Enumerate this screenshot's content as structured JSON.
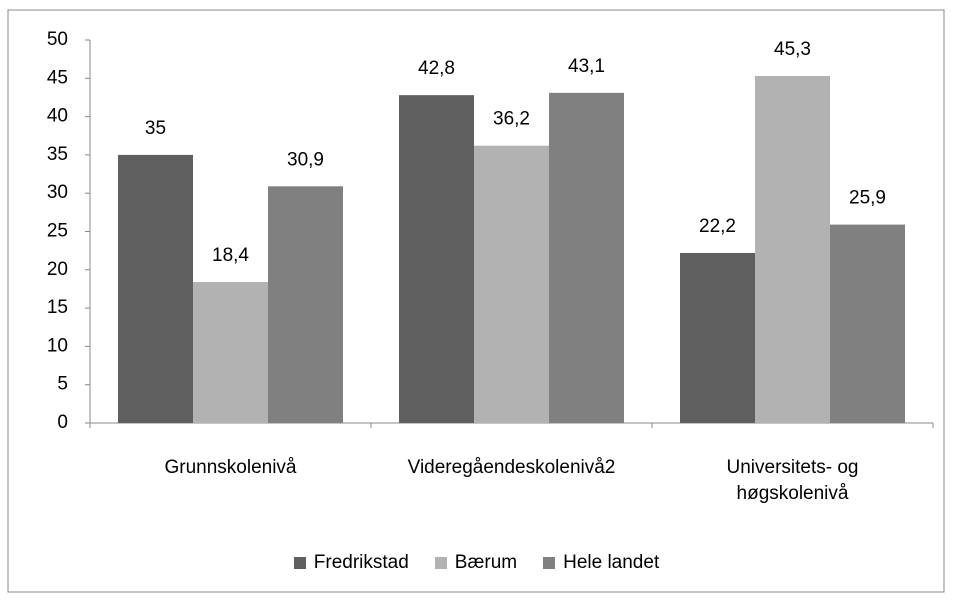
{
  "chart_data": {
    "type": "bar",
    "categories": [
      "Grunnskolenivå",
      "Videregåendeskolenivå2",
      "Universitets- og høgskolenivå"
    ],
    "series": [
      {
        "name": "Fredrikstad",
        "color": "#5f5f5f",
        "values": [
          35,
          42.8,
          22.2
        ],
        "value_labels": [
          "35",
          "42,8",
          "22,2"
        ]
      },
      {
        "name": "Bærum",
        "color": "#b2b2b2",
        "values": [
          18.4,
          36.2,
          45.3
        ],
        "value_labels": [
          "18,4",
          "36,2",
          "45,3"
        ]
      },
      {
        "name": "Hele landet",
        "color": "#808080",
        "values": [
          30.9,
          43.1,
          25.9
        ],
        "value_labels": [
          "30,9",
          "43,1",
          "25,9"
        ]
      }
    ],
    "ylim": [
      0,
      50
    ],
    "yticks": [
      0,
      5,
      10,
      15,
      20,
      25,
      30,
      35,
      40,
      45,
      50
    ],
    "grid": false,
    "legend": "bottom"
  }
}
